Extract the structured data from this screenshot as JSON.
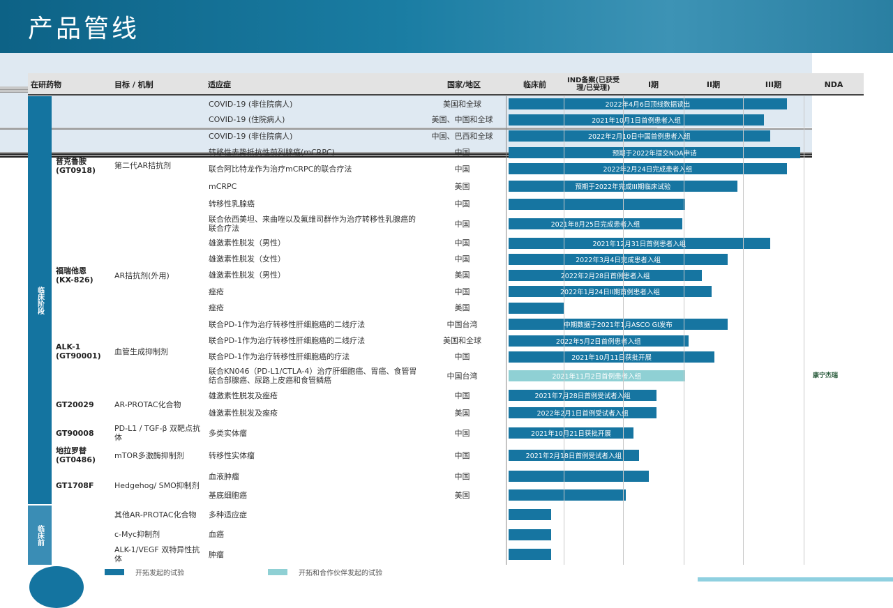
{
  "title": "产品管线",
  "header": {
    "drug": "在研药物",
    "target": "目标 / 机制",
    "indication": "适应症",
    "region": "国家/地区",
    "phases": [
      "临床前",
      "IND备案(已获受理/已受理)",
      "I期",
      "II期",
      "III期",
      "NDA"
    ]
  },
  "stages": {
    "clinical": "临床阶段",
    "preclinical": "临床前"
  },
  "colors": {
    "own": "#1675a1",
    "partner": "#8fd0d4",
    "band": "#dfe9f2",
    "strip": "#1474a0"
  },
  "progress_unit": "phase columns (0=start of 临床前, 6=end of NDA)",
  "groups": [
    {
      "drug": "普克鲁胺",
      "code": "(GT0918)",
      "target": "第二代AR拮抗剂",
      "stage": "clinical",
      "rows": [
        {
          "indication": "COVID-19 (非住院病人)",
          "region": "美国和全球",
          "progress": 4.71,
          "note": "2022年4月6日顶线数据读出"
        },
        {
          "indication": "COVID-19 (住院病人)",
          "region": "美国、中国和全球",
          "progress": 4.33,
          "note": "2021年10月1日首例患者入组"
        },
        {
          "indication": "COVID-19 (非住院病人)",
          "region": "中国、巴西和全球",
          "progress": 4.43,
          "note": "2022年2月10日中国首例患者入组"
        },
        {
          "indication": "转移性去势抵抗性前列腺癌(mCRPC)",
          "region": "中国",
          "progress": 4.94,
          "note": "预期于2022年提交NDA申请"
        },
        {
          "indication": "联合阿比特龙作为治疗mCRPC的联合疗法",
          "region": "中国",
          "progress": 4.71,
          "note": "2022年2月24日完成患者入组"
        },
        {
          "indication": "mCRPC",
          "region": "美国",
          "progress": 3.88,
          "note": "预期于2022年完成III期临床试验"
        },
        {
          "indication": "转移性乳腺癌",
          "region": "中国",
          "progress": 3.0,
          "note": ""
        },
        {
          "indication": "联合依西美坦、来曲唑以及氟维司群作为治疗转移性乳腺癌的联合疗法",
          "region": "中国",
          "progress": 2.96,
          "note": "2021年8月25日完成患者入组"
        }
      ]
    },
    {
      "drug": "福瑞他恩",
      "code": "(KX-826)",
      "target": "AR拮抗剂(外用)",
      "stage": "clinical",
      "band": true,
      "rows": [
        {
          "indication": "雄激素性脱发（男性）",
          "region": "中国",
          "progress": 4.43,
          "note": "2021年12月31日首例患者入组"
        },
        {
          "indication": "雄激素性脱发（女性）",
          "region": "中国",
          "progress": 3.72,
          "note": "2022年3月4日完成患者入组"
        },
        {
          "indication": "雄激素性脱发（男性）",
          "region": "美国",
          "progress": 3.29,
          "note": "2022年2月28日首例患者入组"
        },
        {
          "indication": "痤疮",
          "region": "中国",
          "progress": 3.45,
          "note": "2022年1月24日II期首例患者入组"
        },
        {
          "indication": "痤疮",
          "region": "美国",
          "progress": 0.98,
          "note": ""
        }
      ]
    },
    {
      "drug": "ALK-1",
      "code": "(GT90001)",
      "target": "血管生成抑制剂",
      "stage": "clinical",
      "rows": [
        {
          "indication": "联合PD-1作为治疗转移性肝细胞癌的二线疗法",
          "region": "中国台湾",
          "progress": 3.72,
          "note": "中期数据于2021年1月ASCO GI发布"
        },
        {
          "indication": "联合PD-1作为治疗转移性肝细胞癌的二线疗法",
          "region": "美国和全球",
          "progress": 3.06,
          "note": "2022年5月2日首例患者入组"
        },
        {
          "indication": "联合PD-1作为治疗转移性肝细胞癌的疗法",
          "region": "中国",
          "progress": 3.5,
          "note": "2021年10月11日获批开展"
        },
        {
          "indication": "联合KN046（PD-L1/CTLA-4）治疗肝细胞癌、胃癌、食管胃结合部腺癌、尿路上皮癌和食管鳞癌",
          "region": "中国台湾",
          "progress": 3.0,
          "note": "2021年11月2日首例患者入组",
          "partner": "康宁杰瑞"
        }
      ]
    },
    {
      "drug": "GT20029",
      "code": "",
      "target": "AR-PROTAC化合物",
      "stage": "clinical",
      "band": true,
      "rows": [
        {
          "indication": "雄激素性脱发及痤疮",
          "region": "中国",
          "progress": 2.53,
          "note": "2021年7月28日首例受试者入组"
        },
        {
          "indication": "雄激素性脱发及痤疮",
          "region": "美国",
          "progress": 2.53,
          "note": "2022年2月1日首例受试者入组"
        }
      ]
    },
    {
      "drug": "GT90008",
      "code": "",
      "target": "PD-L1 / TGF-β 双靶点抗体",
      "stage": "clinical",
      "rows": [
        {
          "indication": "多类实体瘤",
          "region": "中国",
          "progress": 2.14,
          "note": "2021年10月21日获批开展"
        }
      ]
    },
    {
      "drug": "地拉罗替",
      "code": "(GT0486)",
      "target": "mTOR多激酶抑制剂",
      "stage": "clinical",
      "band": true,
      "rows": [
        {
          "indication": "转移性实体瘤",
          "region": "中国",
          "progress": 2.23,
          "note": "2021年2月18日首例受试者入组"
        }
      ]
    },
    {
      "drug": "GT1708F",
      "code": "",
      "target": "Hedgehog/ SMO抑制剂",
      "stage": "clinical",
      "rows": [
        {
          "indication": "血液肿瘤",
          "region": "中国",
          "progress": 2.4,
          "note": ""
        },
        {
          "indication": "基底细胞癌",
          "region": "美国",
          "progress": 2.01,
          "note": ""
        }
      ]
    },
    {
      "drug": "",
      "code": "",
      "target": "其他AR-PROTAC化合物",
      "stage": "preclinical",
      "rows": [
        {
          "indication": "多种适应症",
          "region": "",
          "progress": 0.76,
          "note": ""
        }
      ]
    },
    {
      "drug": "",
      "code": "",
      "target": "c-Myc抑制剂",
      "stage": "preclinical",
      "rows": [
        {
          "indication": "血癌",
          "region": "",
          "progress": 0.76,
          "note": ""
        }
      ]
    },
    {
      "drug": "",
      "code": "",
      "target": "ALK-1/VEGF 双特异性抗体",
      "stage": "preclinical",
      "rows": [
        {
          "indication": "肿瘤",
          "region": "",
          "progress": 0.76,
          "note": ""
        }
      ]
    }
  ],
  "legend": {
    "own": "开拓发起的试验",
    "partner": "开拓和合作伙伴发起的试验"
  }
}
